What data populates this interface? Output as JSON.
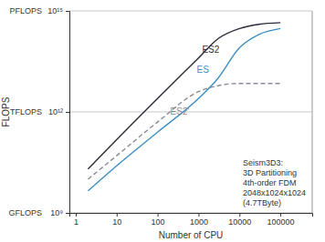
{
  "chart_data": {
    "type": "line",
    "log": true,
    "grid": true,
    "x_label": "Number of CPU",
    "y_label": "FLOPS",
    "x": [
      2,
      10,
      100,
      1000,
      3000,
      10000,
      30000,
      100000
    ],
    "series": [
      {
        "name": "ES2",
        "color": "#2c2c3c",
        "line_style": "solid",
        "values": [
          20000000000,
          150000000000,
          2500000000000,
          40000000000000,
          150000000000000,
          300000000000000,
          400000000000000,
          450000000000000
        ]
      },
      {
        "name": "ES",
        "color": "#3b8fc2",
        "line_style": "solid",
        "values": [
          4500000000,
          25000000000,
          250000000000,
          2500000000000,
          10000000000000,
          80000000000000,
          200000000000000,
          300000000000000
        ]
      },
      {
        "name": "ES2'",
        "color": "#8a8a96",
        "line_style": "dashed",
        "values": [
          10000000000,
          50000000000,
          500000000000,
          4000000000000,
          6000000000000,
          7000000000000,
          7000000000000,
          7000000000000
        ]
      }
    ],
    "xlim": [
      0.7,
      600000
    ],
    "xticks": [
      1,
      10,
      100,
      1000,
      10000,
      100000
    ],
    "ylim": [
      1000000000,
      1000000000000000
    ],
    "yticks": [
      {
        "value": 1000000000,
        "label": "10⁹"
      },
      {
        "value": 1000000000000,
        "label": "10¹²"
      },
      {
        "value": 1000000000000000,
        "label": "10¹⁵"
      }
    ],
    "y_unit_labels": [
      {
        "value": 1000000000,
        "text": "GFLOPS"
      },
      {
        "value": 1000000000000,
        "text": "TFLOPS"
      },
      {
        "value": 1000000000000000,
        "text": "PFLOPS"
      }
    ],
    "annotation": [
      "Seism3D3:",
      "3D Partitioning",
      "4th-order FDM",
      "2048x1024x1024",
      "(4.7TByte)"
    ]
  }
}
